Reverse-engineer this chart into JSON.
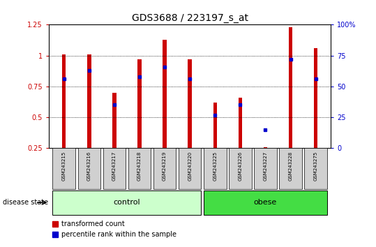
{
  "title": "GDS3688 / 223197_s_at",
  "samples": [
    "GSM243215",
    "GSM243216",
    "GSM243217",
    "GSM243218",
    "GSM243219",
    "GSM243220",
    "GSM243225",
    "GSM243226",
    "GSM243227",
    "GSM243228",
    "GSM243275"
  ],
  "red_values": [
    1.01,
    1.01,
    0.7,
    0.97,
    1.13,
    0.97,
    0.62,
    0.66,
    0.26,
    1.23,
    1.06
  ],
  "blue_values": [
    0.81,
    0.88,
    0.6,
    0.83,
    0.91,
    0.81,
    0.52,
    0.6,
    0.4,
    0.97,
    0.81
  ],
  "control_indices": [
    0,
    1,
    2,
    3,
    4,
    5
  ],
  "obese_indices": [
    6,
    7,
    8,
    9,
    10
  ],
  "ylim_left": [
    0.25,
    1.25
  ],
  "ylim_right": [
    0,
    100
  ],
  "yticks_left": [
    0.25,
    0.5,
    0.75,
    1.0,
    1.25
  ],
  "yticks_right": [
    0,
    25,
    50,
    75,
    100
  ],
  "ytick_labels_right": [
    "0",
    "25",
    "50",
    "75",
    "100%"
  ],
  "red_color": "#cc0000",
  "blue_color": "#0000cc",
  "control_color_light": "#ccffcc",
  "control_color": "#aaddaa",
  "obese_color": "#33cc33",
  "bar_width": 0.15,
  "figsize": [
    5.39,
    3.54
  ],
  "dpi": 100
}
